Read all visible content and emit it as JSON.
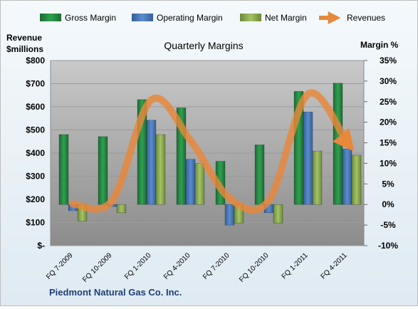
{
  "company": "Piedmont Natural  Gas Co. Inc.",
  "chart_data": {
    "type": "bar",
    "title": "Quarterly Margins",
    "categories": [
      "FQ 7-2009",
      "FQ 10-2009",
      "FQ 1-2010",
      "FQ 4-2010",
      "FQ 7-2010",
      "FQ 10-2010",
      "FQ 1-2011",
      "FQ 4-2011"
    ],
    "left_axis": {
      "label_line1": "Revenue",
      "label_line2": "$millions",
      "min": 0,
      "max": 800,
      "tick_values": [
        0,
        100,
        200,
        300,
        400,
        500,
        600,
        700,
        800
      ],
      "tick_labels": [
        "$-",
        "$100",
        "$200",
        "$300",
        "$400",
        "$500",
        "$600",
        "$700",
        "$800"
      ]
    },
    "right_axis": {
      "label": "Margin %",
      "min": -10,
      "max": 35,
      "tick_values": [
        -10,
        -5,
        0,
        5,
        10,
        15,
        20,
        25,
        30,
        35
      ],
      "tick_labels": [
        "-10%",
        "-5%",
        "0%",
        "5%",
        "10%",
        "15%",
        "20%",
        "25%",
        "30%",
        "35%"
      ]
    },
    "series": [
      {
        "name": "Gross Margin",
        "type": "bar",
        "axis": "right",
        "color": "#2a8a45",
        "values": [
          17,
          16.5,
          25.5,
          23.5,
          10.5,
          14.5,
          27.5,
          29.5
        ]
      },
      {
        "name": "Operating Margin",
        "type": "bar",
        "axis": "right",
        "color": "#4f81bd",
        "values": [
          -1.5,
          -0.5,
          20.5,
          11,
          -5,
          -2,
          22.5,
          13.5
        ]
      },
      {
        "name": "Net Margin",
        "type": "bar",
        "axis": "right",
        "color": "#8faa55",
        "values": [
          -4,
          -2,
          17,
          10,
          -4.5,
          -4.5,
          13,
          12
        ]
      },
      {
        "name": "Revenues",
        "type": "line",
        "axis": "left",
        "color": "#e8883a",
        "values": [
          180,
          195,
          630,
          455,
          205,
          195,
          655,
          445
        ]
      }
    ],
    "legend": "top",
    "grid": true
  }
}
